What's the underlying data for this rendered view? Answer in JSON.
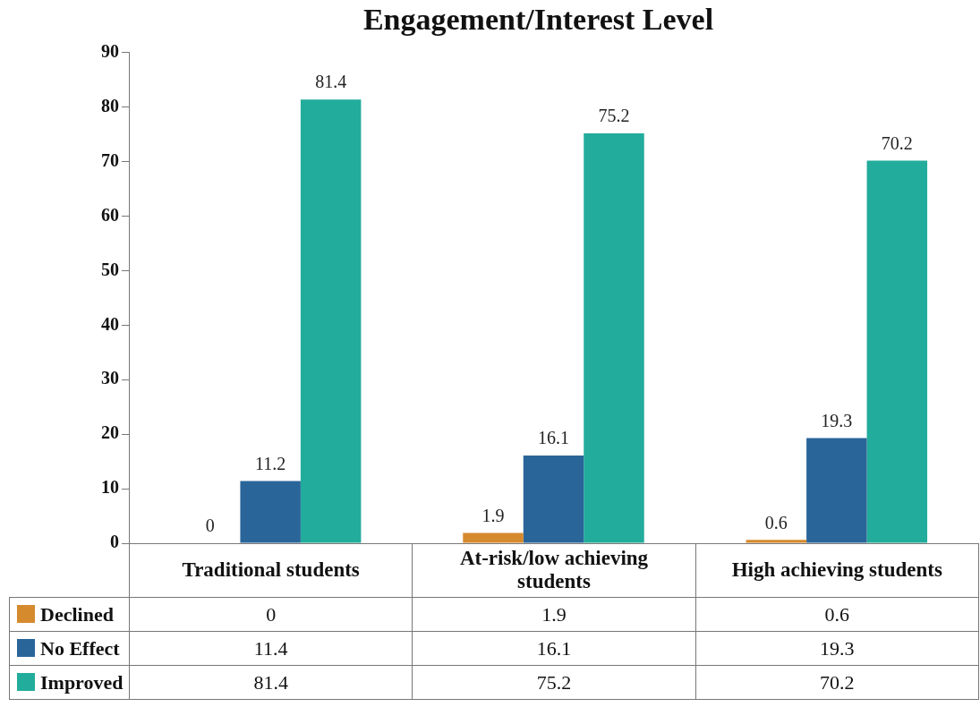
{
  "chart_data": {
    "type": "bar",
    "title": "Engagement/Interest Level",
    "categories": [
      "Traditional students",
      "At-risk/low achieving students",
      "High achieving students"
    ],
    "series": [
      {
        "name": "Declined",
        "color": "#d68a2e",
        "values": [
          0,
          1.9,
          0.6
        ]
      },
      {
        "name": "No Effect",
        "color": "#2a6599",
        "values": [
          11.4,
          16.1,
          19.3
        ]
      },
      {
        "name": "Improved",
        "color": "#22ac9b",
        "values": [
          81.4,
          75.2,
          70.2
        ]
      }
    ],
    "annotations": [
      "0",
      "11.2",
      "81.4",
      "1.9",
      "16.1",
      "75.2",
      "0.6",
      "19.3",
      "70.2"
    ],
    "ylim": [
      0,
      90
    ],
    "yticks": [
      0,
      10,
      20,
      30,
      40,
      50,
      60,
      70,
      80,
      90
    ],
    "grid": false,
    "legend": "bottom left",
    "data_labels": true
  }
}
